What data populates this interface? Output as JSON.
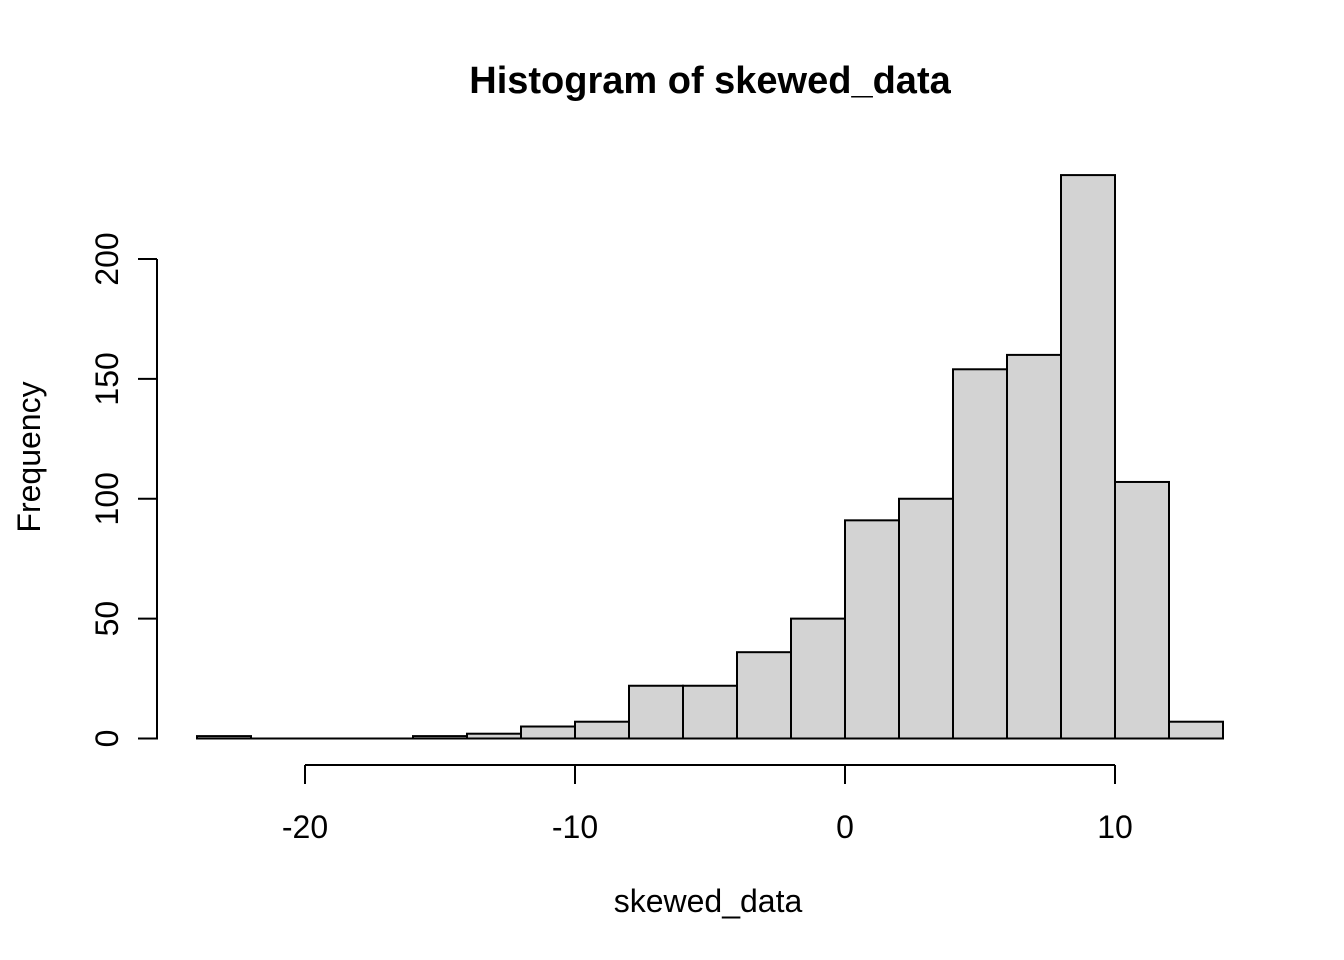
{
  "title": "Histogram of skewed_data",
  "x_axis": {
    "label": "skewed_data",
    "tick_labels": [
      "-20",
      "-10",
      "0",
      "10"
    ],
    "tick_values": [
      -20,
      -10,
      0,
      10
    ]
  },
  "y_axis": {
    "label": "Frequency",
    "tick_labels": [
      "0",
      "50",
      "100",
      "150",
      "200"
    ],
    "tick_values": [
      0,
      50,
      100,
      150,
      200
    ]
  },
  "colors": {
    "background": "#ffffff",
    "bar_fill": "#d3d3d3",
    "bar_stroke": "#000000",
    "axis": "#000000",
    "text": "#000000"
  },
  "chart_data": {
    "type": "bar",
    "subtype": "histogram",
    "title": "Histogram of skewed_data",
    "xlabel": "skewed_data",
    "ylabel": "Frequency",
    "bin_width": 2,
    "bin_edges": [
      -24,
      -22,
      -20,
      -18,
      -16,
      -14,
      -12,
      -10,
      -8,
      -6,
      -4,
      -2,
      0,
      2,
      4,
      6,
      8,
      10,
      12,
      14
    ],
    "counts": [
      1,
      0,
      0,
      0,
      1,
      2,
      5,
      7,
      22,
      22,
      36,
      50,
      91,
      100,
      154,
      160,
      235,
      107,
      7
    ],
    "xlim": [
      -24,
      14
    ],
    "ylim": [
      0,
      200
    ],
    "x_tick_values": [
      -20,
      -10,
      0,
      10
    ],
    "y_tick_values": [
      0,
      50,
      100,
      150,
      200
    ],
    "grid": false,
    "legend": false
  }
}
